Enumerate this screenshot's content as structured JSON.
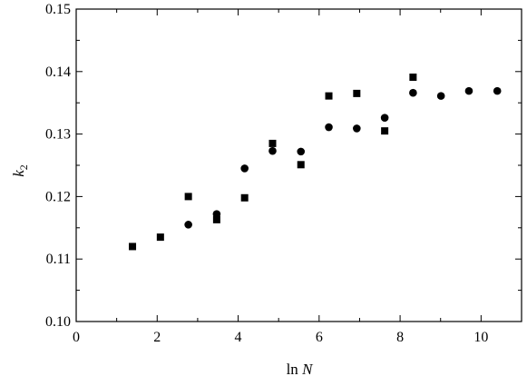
{
  "chart_data": {
    "type": "scatter",
    "title": "",
    "xlabel_text": "ln ",
    "xlabel_var": "N",
    "ylabel_var": "k",
    "ylabel_sub": "2",
    "xlim": [
      0,
      11
    ],
    "ylim": [
      0.1,
      0.15
    ],
    "xticks": [
      "0",
      "2",
      "4",
      "6",
      "8",
      "10"
    ],
    "yticks": [
      "0.10",
      "0.11",
      "0.12",
      "0.13",
      "0.14",
      "0.15"
    ],
    "grid": false,
    "legend": "none",
    "series": [
      {
        "marker": "square",
        "color": "#000000",
        "points": [
          [
            1.39,
            0.112
          ],
          [
            2.08,
            0.1135
          ],
          [
            2.77,
            0.12
          ],
          [
            3.47,
            0.1163
          ],
          [
            4.16,
            0.1198
          ],
          [
            4.85,
            0.1285
          ],
          [
            5.55,
            0.1251
          ],
          [
            6.24,
            0.1361
          ],
          [
            6.93,
            0.1365
          ],
          [
            7.62,
            0.1305
          ],
          [
            8.32,
            0.1391
          ]
        ]
      },
      {
        "marker": "circle",
        "color": "#000000",
        "points": [
          [
            2.77,
            0.1155
          ],
          [
            3.47,
            0.1172
          ],
          [
            4.16,
            0.1245
          ],
          [
            4.85,
            0.1273
          ],
          [
            5.55,
            0.1272
          ],
          [
            6.24,
            0.1311
          ],
          [
            6.93,
            0.1309
          ],
          [
            7.62,
            0.1326
          ],
          [
            8.32,
            0.1366
          ],
          [
            9.01,
            0.1361
          ],
          [
            9.7,
            0.1369
          ],
          [
            10.4,
            0.1369
          ]
        ]
      }
    ]
  }
}
